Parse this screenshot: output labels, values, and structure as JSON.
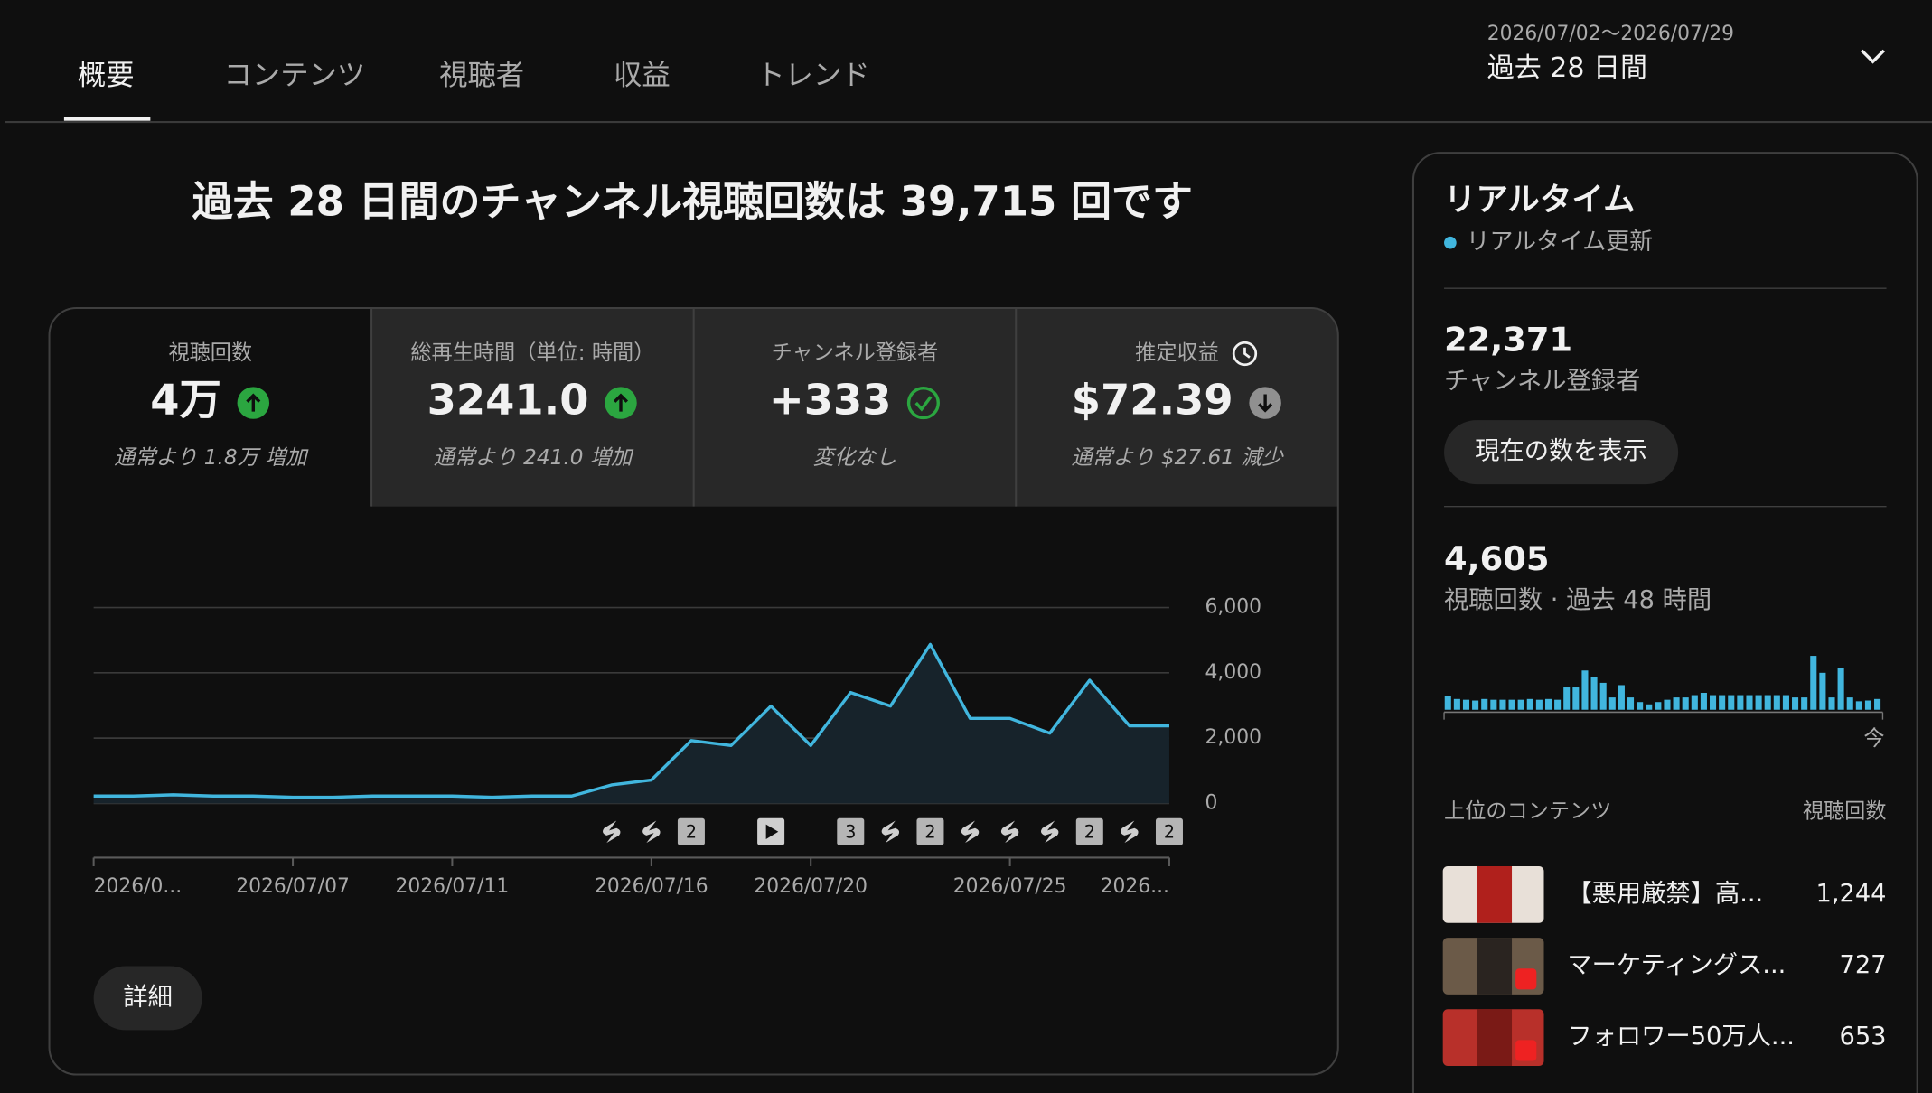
{
  "tabs": [
    "概要",
    "コンテンツ",
    "視聴者",
    "収益",
    "トレンド"
  ],
  "date_range": {
    "dates": "2026/07/02〜2026/07/29",
    "label": "過去 28 日間"
  },
  "headline": "過去 28 日間のチャンネル視聴回数は 39,715 回です",
  "metrics": [
    {
      "title": "視聴回数",
      "value": "4万",
      "note": "通常より 1.8万 増加",
      "trend": "up"
    },
    {
      "title": "総再生時間（単位: 時間）",
      "value": "3241.0",
      "note": "通常より 241.0 増加",
      "trend": "up"
    },
    {
      "title": "チャンネル登録者",
      "value": "+333",
      "note": "変化なし",
      "trend": "flat"
    },
    {
      "title": "推定収益",
      "value": "$72.39",
      "note": "通常より $27.61 減少",
      "trend": "down"
    }
  ],
  "detail_button": "詳細",
  "chart_data": [
    {
      "type": "line",
      "categories": [
        "2026/0...",
        null,
        null,
        null,
        null,
        "2026/07/07",
        null,
        null,
        null,
        "2026/07/11",
        null,
        null,
        null,
        null,
        "2026/07/16",
        null,
        null,
        null,
        "2026/07/20",
        null,
        null,
        null,
        null,
        "2026/07/25",
        null,
        null,
        null,
        "2026..."
      ],
      "values": [
        226,
        226,
        264,
        226,
        226,
        189,
        189,
        226,
        226,
        226,
        189,
        226,
        226,
        566,
        717,
        1925,
        1774,
        2981,
        1774,
        3396,
        2981,
        4868,
        2604,
        2604,
        2151,
        3774,
        2377,
        2377
      ],
      "color": "#41b6de",
      "fill": "#17232b",
      "ylim": [
        0,
        6000
      ],
      "yticks": [
        0,
        {
          "value": 2000,
          "label": "2,000"
        },
        {
          "value": 4000,
          "label": "4,000"
        },
        {
          "value": 6000,
          "label": "6,000"
        }
      ],
      "grid": true,
      "uploads": [
        {
          "day": 13,
          "kind": "short"
        },
        {
          "day": 14,
          "kind": "short"
        },
        {
          "day": 15,
          "kind": "badge",
          "count": "2"
        },
        {
          "day": 17,
          "kind": "video"
        },
        {
          "day": 19,
          "kind": "badge",
          "count": "3"
        },
        {
          "day": 20,
          "kind": "short"
        },
        {
          "day": 21,
          "kind": "badge",
          "count": "2"
        },
        {
          "day": 22,
          "kind": "short"
        },
        {
          "day": 23,
          "kind": "short"
        },
        {
          "day": 24,
          "kind": "short"
        },
        {
          "day": 25,
          "kind": "badge",
          "count": "2"
        },
        {
          "day": 26,
          "kind": "short"
        },
        {
          "day": 27,
          "kind": "badge",
          "count": "2"
        }
      ]
    },
    {
      "type": "bar",
      "values": [
        90,
        70,
        65,
        60,
        70,
        65,
        65,
        65,
        65,
        70,
        65,
        70,
        65,
        145,
        145,
        255,
        210,
        175,
        80,
        160,
        80,
        50,
        35,
        50,
        65,
        80,
        80,
        95,
        110,
        95,
        95,
        95,
        95,
        95,
        95,
        95,
        95,
        95,
        80,
        80,
        350,
        240,
        80,
        270,
        80,
        55,
        60,
        70
      ],
      "color": "#41b6de",
      "ylim": [
        0,
        400
      ],
      "end_label": "今"
    }
  ],
  "realtime": {
    "title": "リアルタイム",
    "status": "リアルタイム更新",
    "subscribers": "22,371",
    "subscribers_label": "チャンネル登録者",
    "show_button": "現在の数を表示",
    "views": "4,605",
    "views_label": "視聴回数 · 過去 48 時間",
    "top_heading": "上位のコンテンツ",
    "top_column": "視聴回数",
    "items": [
      {
        "title": "【悪用厳禁】高...",
        "views": "1,244"
      },
      {
        "title": "マーケティングス...",
        "views": "727"
      },
      {
        "title": "フォロワー50万人...",
        "views": "653"
      }
    ]
  }
}
